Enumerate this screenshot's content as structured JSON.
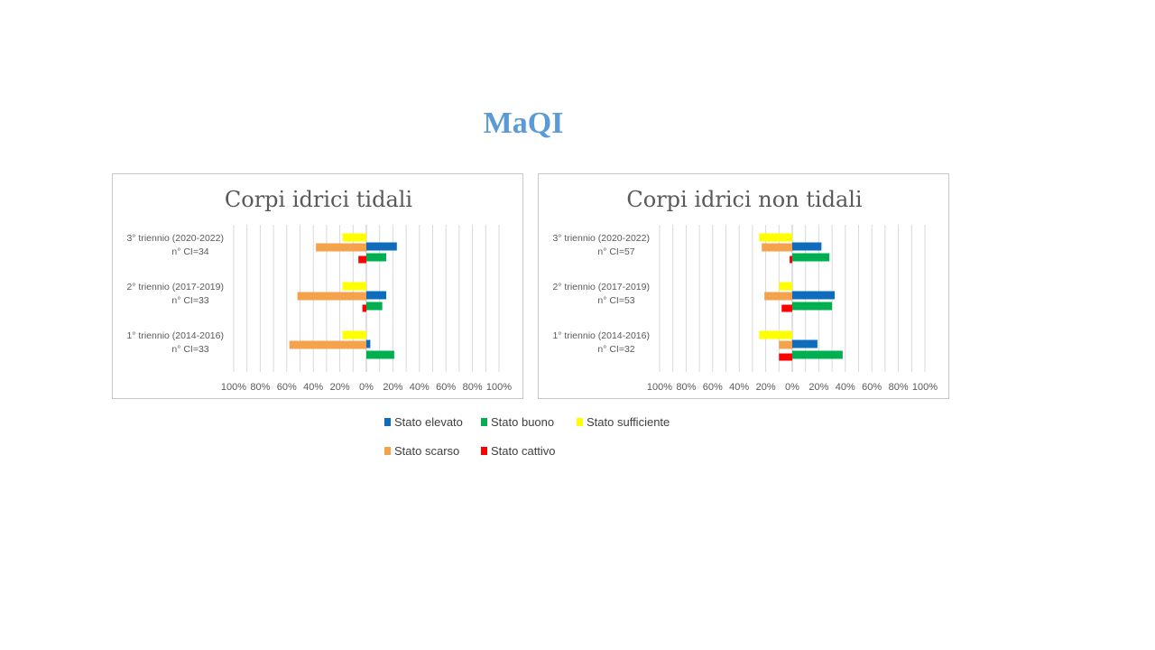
{
  "slide_title": "MaQI",
  "colors": {
    "Stato elevato": "#0f6cbd",
    "Stato buono": "#00b050",
    "Stato sufficiente": "#ffff00",
    "Stato scarso": "#f4a34c",
    "Stato cattivo": "#ff0000"
  },
  "legend": [
    {
      "label": "Stato elevato",
      "color": "#0f6cbd"
    },
    {
      "label": "Stato buono",
      "color": "#00b050"
    },
    {
      "label": "Stato sufficiente",
      "color": "#ffff00"
    },
    {
      "label": "Stato scarso",
      "color": "#f4a34c"
    },
    {
      "label": "Stato cattivo",
      "color": "#ff0000"
    }
  ],
  "chart_data": [
    {
      "type": "bar",
      "orientation": "horizontal-diverging",
      "title": "Corpi idrici tidali",
      "categories": [
        {
          "line1": "3° triennio (2020-2022)",
          "line2": "n° CI=34"
        },
        {
          "line1": "2° triennio (2017-2019)",
          "line2": "n° CI=33"
        },
        {
          "line1": "1° triennio (2014-2016)",
          "line2": "n° CI=33"
        }
      ],
      "x_ticks": [
        "100%",
        "80%",
        "60%",
        "40%",
        "20%",
        "0%",
        "20%",
        "40%",
        "60%",
        "80%",
        "100%"
      ],
      "xlim": [
        -100,
        100
      ],
      "series": [
        {
          "name": "Stato elevato",
          "values": [
            23,
            15,
            3
          ]
        },
        {
          "name": "Stato buono",
          "values": [
            15,
            12,
            21
          ]
        },
        {
          "name": "Stato sufficiente",
          "values": [
            -18,
            -18,
            -18
          ]
        },
        {
          "name": "Stato scarso",
          "values": [
            -38,
            -52,
            -58
          ]
        },
        {
          "name": "Stato cattivo",
          "values": [
            -6,
            -3,
            0
          ]
        }
      ]
    },
    {
      "type": "bar",
      "orientation": "horizontal-diverging",
      "title": "Corpi idrici non tidali",
      "categories": [
        {
          "line1": "3° triennio (2020-2022)",
          "line2": "n° CI=57"
        },
        {
          "line1": "2° triennio (2017-2019)",
          "line2": "n° CI=53"
        },
        {
          "line1": "1° triennio (2014-2016)",
          "line2": "n° CI=32"
        }
      ],
      "x_ticks": [
        "100%",
        "80%",
        "60%",
        "40%",
        "20%",
        "0%",
        "20%",
        "40%",
        "60%",
        "80%",
        "100%"
      ],
      "xlim": [
        -100,
        100
      ],
      "series": [
        {
          "name": "Stato elevato",
          "values": [
            22,
            32,
            19
          ]
        },
        {
          "name": "Stato buono",
          "values": [
            28,
            30,
            38
          ]
        },
        {
          "name": "Stato sufficiente",
          "values": [
            -25,
            -10,
            -25
          ]
        },
        {
          "name": "Stato scarso",
          "values": [
            -23,
            -21,
            -10
          ]
        },
        {
          "name": "Stato cattivo",
          "values": [
            -2,
            -8,
            -10
          ]
        }
      ]
    }
  ]
}
